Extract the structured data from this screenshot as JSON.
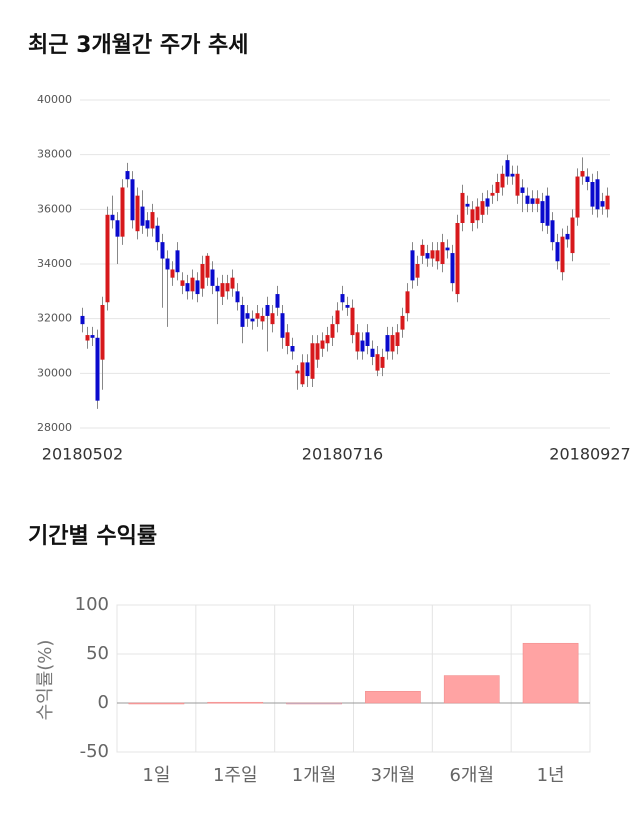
{
  "chart_data": [
    {
      "type": "candlestick",
      "title": "최근 3개월간 주가 추세",
      "categories": [
        "20180502",
        null,
        null,
        null,
        null,
        null,
        null,
        null,
        null,
        null,
        null,
        null,
        null,
        null,
        null,
        null,
        null,
        null,
        null,
        null,
        null,
        null,
        null,
        null,
        null,
        null,
        null,
        null,
        null,
        null,
        null,
        null,
        null,
        null,
        null,
        null,
        null,
        null,
        null,
        null,
        null,
        null,
        null,
        null,
        null,
        null,
        null,
        null,
        null,
        null,
        null,
        null,
        "20180716",
        null,
        null,
        null,
        null,
        null,
        null,
        null,
        null,
        null,
        null,
        null,
        null,
        null,
        null,
        null,
        null,
        null,
        null,
        null,
        null,
        null,
        null,
        null,
        null,
        null,
        null,
        null,
        null,
        null,
        null,
        null,
        null,
        null,
        null,
        null,
        null,
        null,
        null,
        null,
        null,
        null,
        null,
        null,
        null,
        null,
        null,
        null,
        null,
        null,
        null,
        null,
        null,
        "20180927"
      ],
      "open": [
        32100,
        31200,
        31400,
        31300,
        30500,
        32600,
        35800,
        35600,
        35000,
        37400,
        37100,
        35200,
        36100,
        35600,
        35300,
        35400,
        34800,
        34200,
        33500,
        34500,
        33200,
        33300,
        33000,
        33400,
        33100,
        33500,
        33800,
        33200,
        32800,
        33000,
        33100,
        33000,
        32500,
        32200,
        32000,
        32000,
        31900,
        32500,
        31800,
        32900,
        32200,
        31000,
        31000,
        30000,
        29600,
        30400,
        29800,
        30500,
        30900,
        31100,
        31300,
        31800,
        32900,
        32500,
        31400,
        30800,
        31200,
        31500,
        30900,
        30100,
        30200,
        31400,
        30800,
        31000,
        31600,
        32200,
        34500,
        33500,
        34300,
        34400,
        34200,
        34100,
        34000,
        34600,
        34400,
        32900,
        35500,
        36200,
        35500,
        35600,
        35800,
        36400,
        36500,
        36600,
        36800,
        37800,
        37300,
        36500,
        36800,
        36500,
        36400,
        36200,
        36300,
        36500,
        35600,
        34800,
        33700,
        35100,
        34400,
        35700,
        37200,
        37200,
        37000,
        37100,
        36300,
        36000
      ],
      "high": [
        32400,
        31700,
        31700,
        31600,
        32800,
        36100,
        36500,
        35900,
        37100,
        37700,
        37400,
        36800,
        36700,
        35900,
        36200,
        35700,
        35100,
        34500,
        34100,
        34800,
        33700,
        33600,
        33800,
        33700,
        34300,
        34400,
        34100,
        33500,
        33600,
        33600,
        33800,
        33300,
        32800,
        32500,
        32300,
        32500,
        32400,
        32800,
        32500,
        33200,
        32500,
        31800,
        31300,
        30300,
        30700,
        30700,
        31400,
        31400,
        31500,
        31700,
        32100,
        32600,
        33200,
        32800,
        32700,
        31800,
        31500,
        31800,
        31200,
        31000,
        30900,
        31700,
        31700,
        31800,
        32400,
        33300,
        34800,
        34300,
        34900,
        34700,
        34800,
        34800,
        35100,
        34900,
        34700,
        35800,
        36900,
        36500,
        36300,
        36400,
        36600,
        36700,
        36900,
        37300,
        37600,
        38000,
        37600,
        37600,
        37100,
        36800,
        36700,
        36700,
        36600,
        36800,
        35900,
        35100,
        35300,
        35400,
        36000,
        37500,
        37900,
        37500,
        37300,
        37400,
        36600,
        36800
      ],
      "low": [
        31500,
        30900,
        31000,
        28700,
        29400,
        32300,
        35300,
        34000,
        34700,
        36800,
        35300,
        34900,
        35100,
        35000,
        35000,
        34500,
        32400,
        31700,
        33200,
        33400,
        32900,
        32700,
        32700,
        32600,
        32800,
        33200,
        32900,
        31800,
        32500,
        32700,
        32800,
        32300,
        31100,
        31700,
        31600,
        31700,
        31600,
        30800,
        31500,
        32100,
        30900,
        30700,
        30500,
        29400,
        29500,
        29500,
        29500,
        30200,
        30600,
        30800,
        31000,
        31500,
        32300,
        32100,
        31100,
        30500,
        30500,
        30700,
        30300,
        29900,
        29900,
        30500,
        30500,
        30700,
        31300,
        31900,
        33100,
        33200,
        34000,
        33900,
        33900,
        33800,
        33700,
        34200,
        33000,
        32600,
        35200,
        35800,
        35200,
        35300,
        35500,
        35800,
        36200,
        36300,
        36500,
        36900,
        36900,
        36200,
        35900,
        35900,
        35900,
        35900,
        35200,
        35100,
        34500,
        33800,
        33400,
        34600,
        34100,
        35400,
        36900,
        36700,
        35800,
        35700,
        35800,
        35700
      ],
      "close": [
        31800,
        31400,
        31300,
        29000,
        32500,
        35800,
        35600,
        35000,
        36800,
        37100,
        35600,
        36500,
        35400,
        35300,
        35900,
        34800,
        34200,
        33800,
        33800,
        33700,
        33400,
        33000,
        33500,
        32900,
        34000,
        34300,
        33200,
        33000,
        33300,
        33300,
        33500,
        32600,
        31700,
        32000,
        31900,
        32200,
        32100,
        32100,
        32200,
        32400,
        31300,
        31500,
        30800,
        30100,
        30400,
        29900,
        31100,
        31100,
        31200,
        31400,
        31800,
        32300,
        32600,
        32400,
        32400,
        31500,
        30800,
        31000,
        30600,
        30700,
        30600,
        30800,
        31400,
        31500,
        32100,
        33000,
        33400,
        34000,
        34700,
        34200,
        34500,
        34500,
        34800,
        34500,
        33300,
        35500,
        36600,
        36100,
        36000,
        36100,
        36300,
        36100,
        36600,
        37000,
        37300,
        37200,
        37200,
        37300,
        36600,
        36200,
        36200,
        36400,
        35500,
        35400,
        34800,
        34100,
        35000,
        34900,
        35700,
        37200,
        37400,
        37000,
        36100,
        36000,
        36100,
        36500
      ],
      "up_color": "#d7191c",
      "down_color": "#0a0acd",
      "ylim": [
        28000,
        40000
      ],
      "yticks": [
        28000,
        30000,
        32000,
        34000,
        36000,
        38000,
        40000
      ],
      "grid": true
    },
    {
      "type": "bar",
      "title": "기간별 수익률",
      "ylabel": "수익률(%)",
      "categories": [
        "1일",
        "1주일",
        "1개월",
        "3개월",
        "6개월",
        "1년"
      ],
      "values": [
        0,
        0.8,
        -0.5,
        12,
        28,
        61
      ],
      "colors": [
        "#ffa3a3",
        "#ffa3a3",
        "#a3c4e8",
        "#ffa3a3",
        "#ffa3a3",
        "#ffa3a3"
      ],
      "ylim": [
        -50,
        100
      ],
      "yticks": [
        -50,
        0,
        50,
        100
      ],
      "grid": true
    }
  ]
}
